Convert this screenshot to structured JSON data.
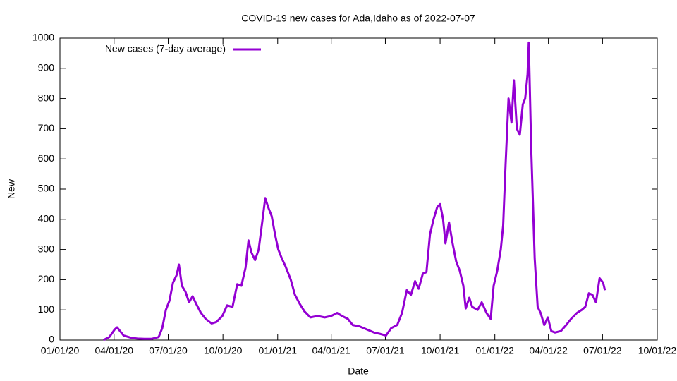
{
  "chart_data": {
    "type": "line",
    "title": "COVID-19 new cases for Ada,Idaho as of 2022-07-07",
    "x_label": "Date",
    "y_label": "New",
    "x": [
      "2020-03-14",
      "2020-03-24",
      "2020-04-02",
      "2020-04-06",
      "2020-04-11",
      "2020-04-17",
      "2020-04-29",
      "2020-05-10",
      "2020-05-22",
      "2020-06-03",
      "2020-06-15",
      "2020-06-21",
      "2020-06-27",
      "2020-07-03",
      "2020-07-09",
      "2020-07-15",
      "2020-07-19",
      "2020-07-24",
      "2020-07-30",
      "2020-08-05",
      "2020-08-11",
      "2020-08-17",
      "2020-08-25",
      "2020-09-02",
      "2020-09-12",
      "2020-09-20",
      "2020-09-30",
      "2020-10-08",
      "2020-10-17",
      "2020-10-25",
      "2020-11-01",
      "2020-11-08",
      "2020-11-13",
      "2020-11-18",
      "2020-11-24",
      "2020-11-30",
      "2020-12-06",
      "2020-12-11",
      "2020-12-16",
      "2020-12-22",
      "2020-12-28",
      "2021-01-02",
      "2021-01-08",
      "2021-01-14",
      "2021-01-23",
      "2021-01-30",
      "2021-02-07",
      "2021-02-15",
      "2021-02-25",
      "2021-03-09",
      "2021-03-21",
      "2021-04-01",
      "2021-04-11",
      "2021-04-19",
      "2021-04-29",
      "2021-05-07",
      "2021-05-19",
      "2021-05-31",
      "2021-06-12",
      "2021-06-23",
      "2021-07-02",
      "2021-07-11",
      "2021-07-21",
      "2021-07-29",
      "2021-08-06",
      "2021-08-13",
      "2021-08-20",
      "2021-08-26",
      "2021-09-02",
      "2021-09-08",
      "2021-09-14",
      "2021-09-20",
      "2021-09-26",
      "2021-10-01",
      "2021-10-06",
      "2021-10-10",
      "2021-10-16",
      "2021-10-22",
      "2021-10-28",
      "2021-11-03",
      "2021-11-09",
      "2021-11-13",
      "2021-11-19",
      "2021-11-24",
      "2021-12-03",
      "2021-12-10",
      "2021-12-18",
      "2021-12-25",
      "2021-12-30",
      "2022-01-05",
      "2022-01-11",
      "2022-01-15",
      "2022-01-19",
      "2022-01-24",
      "2022-01-29",
      "2022-02-02",
      "2022-02-07",
      "2022-02-12",
      "2022-02-17",
      "2022-02-21",
      "2022-02-25",
      "2022-02-27",
      "2022-03-03",
      "2022-03-09",
      "2022-03-14",
      "2022-03-19",
      "2022-03-25",
      "2022-03-31",
      "2022-04-06",
      "2022-04-12",
      "2022-04-22",
      "2022-05-01",
      "2022-05-09",
      "2022-05-19",
      "2022-05-27",
      "2022-06-02",
      "2022-06-08",
      "2022-06-14",
      "2022-06-20",
      "2022-06-26",
      "2022-07-02",
      "2022-07-05"
    ],
    "series": [
      {
        "name": "New cases (7-day average)",
        "color": "#9400d3",
        "values": [
          0,
          10,
          35,
          42,
          30,
          15,
          8,
          5,
          4,
          4,
          10,
          40,
          100,
          130,
          190,
          215,
          250,
          180,
          160,
          125,
          145,
          120,
          90,
          70,
          55,
          60,
          80,
          115,
          110,
          185,
          180,
          240,
          330,
          290,
          265,
          300,
          390,
          470,
          440,
          410,
          345,
          300,
          270,
          245,
          200,
          150,
          120,
          95,
          75,
          80,
          75,
          80,
          90,
          80,
          70,
          50,
          45,
          35,
          25,
          20,
          15,
          40,
          50,
          90,
          165,
          150,
          195,
          170,
          220,
          225,
          350,
          400,
          440,
          450,
          400,
          320,
          390,
          320,
          260,
          230,
          180,
          105,
          140,
          110,
          100,
          125,
          90,
          70,
          180,
          230,
          300,
          380,
          580,
          800,
          720,
          860,
          700,
          680,
          780,
          800,
          880,
          985,
          640,
          270,
          110,
          90,
          50,
          75,
          30,
          25,
          30,
          50,
          70,
          90,
          100,
          110,
          155,
          150,
          125,
          205,
          190,
          165
        ]
      }
    ],
    "xlim": [
      "2020-01-01",
      "2022-10-01"
    ],
    "xticks": [
      {
        "value": "2020-01-01",
        "label": "01/01/20"
      },
      {
        "value": "2020-04-01",
        "label": "04/01/20"
      },
      {
        "value": "2020-07-01",
        "label": "07/01/20"
      },
      {
        "value": "2020-10-01",
        "label": "10/01/20"
      },
      {
        "value": "2021-01-01",
        "label": "01/01/21"
      },
      {
        "value": "2021-04-01",
        "label": "04/01/21"
      },
      {
        "value": "2021-07-01",
        "label": "07/01/21"
      },
      {
        "value": "2021-10-01",
        "label": "10/01/21"
      },
      {
        "value": "2022-01-01",
        "label": "01/01/22"
      },
      {
        "value": "2022-04-01",
        "label": "04/01/22"
      },
      {
        "value": "2022-07-01",
        "label": "07/01/22"
      },
      {
        "value": "2022-10-01",
        "label": "10/01/22"
      }
    ],
    "ylim": [
      0,
      1000
    ],
    "yticks": [
      0,
      100,
      200,
      300,
      400,
      500,
      600,
      700,
      800,
      900,
      1000
    ],
    "legend": "top-left"
  }
}
